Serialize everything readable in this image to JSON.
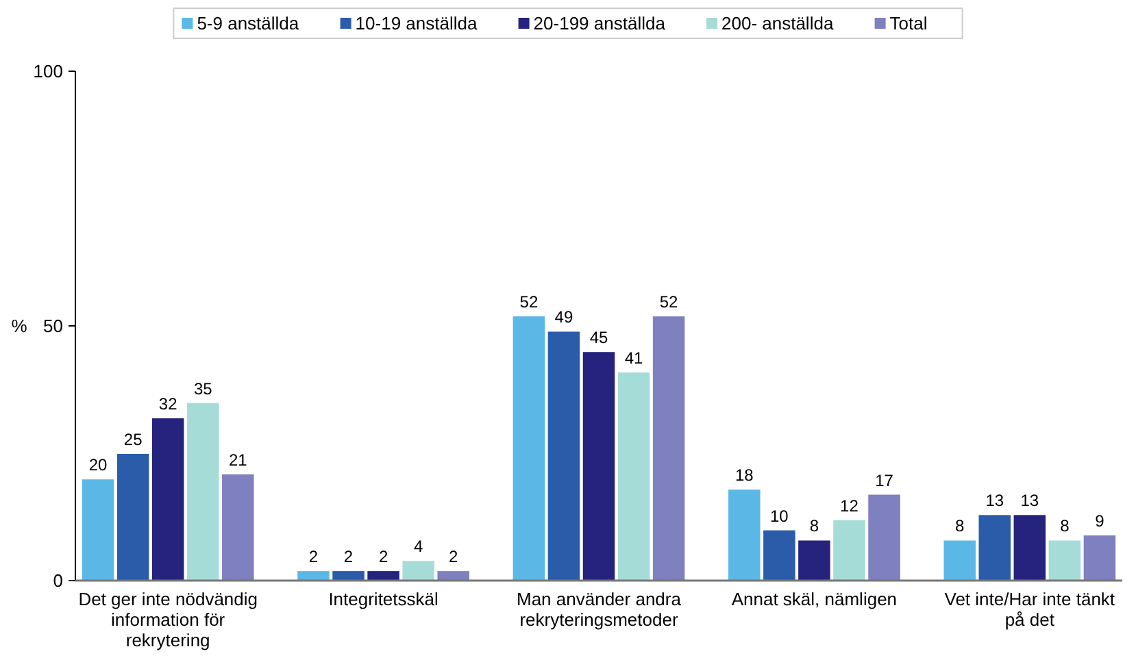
{
  "chart_data": {
    "type": "bar",
    "ylabel": "%",
    "categories": [
      "Det ger inte nödvändig information för rekrytering",
      "Integritetsskäl",
      "Man använder andra rekryteringsmetoder",
      "Annat skäl, nämligen",
      "Vet inte/Har inte tänkt på det"
    ],
    "series": [
      {
        "name": "5-9 anställda",
        "color": "#5bb8e6",
        "values": [
          20,
          2,
          52,
          18,
          8
        ]
      },
      {
        "name": "10-19 anställda",
        "color": "#2a5caa",
        "values": [
          25,
          2,
          49,
          10,
          13
        ]
      },
      {
        "name": "20-199 anställda",
        "color": "#26237f",
        "values": [
          32,
          2,
          45,
          8,
          13
        ]
      },
      {
        "name": "200- anställda",
        "color": "#a6dcd8",
        "values": [
          35,
          4,
          41,
          12,
          8
        ]
      },
      {
        "name": "Total",
        "color": "#7f80bf",
        "values": [
          21,
          2,
          52,
          17,
          9
        ]
      }
    ],
    "ylim": [
      0,
      100
    ],
    "yticks": [
      0,
      50,
      100
    ],
    "data_labels": true,
    "grid": false,
    "legend": "top"
  }
}
